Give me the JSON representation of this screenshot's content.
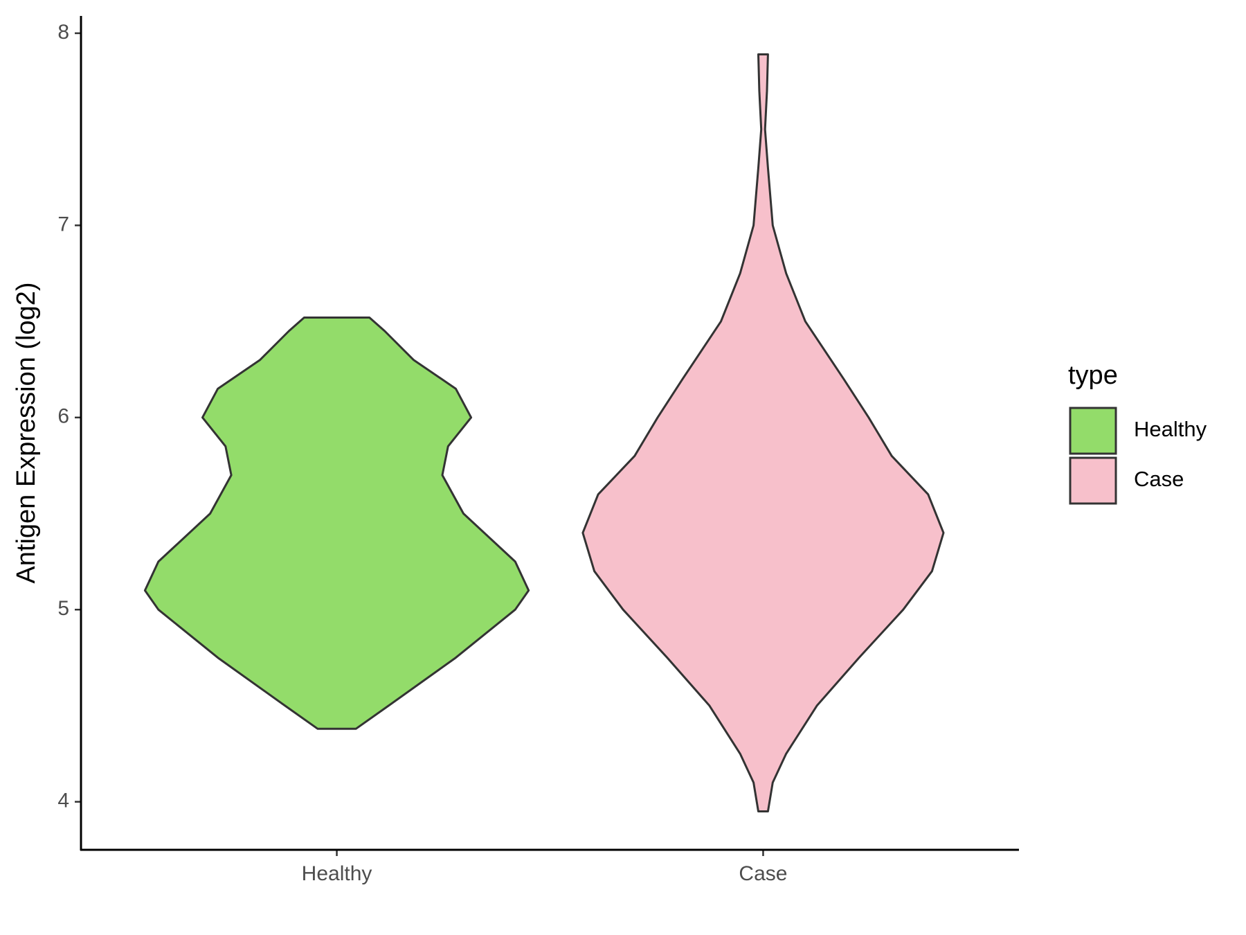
{
  "chart_data": {
    "type": "violin",
    "y_label": "Antigen Expression (log2)",
    "categories": [
      "Healthy",
      "Case"
    ],
    "legend_title": "type",
    "legend_position": "right",
    "ylim": [
      3.75,
      8.09
    ],
    "yticks": [
      4,
      5,
      6,
      7,
      8
    ],
    "series": [
      {
        "name": "Healthy",
        "color": "#93dc6a",
        "y": [
          4.38,
          4.5,
          4.75,
          5.0,
          5.1,
          5.25,
          5.5,
          5.7,
          5.85,
          6.0,
          6.15,
          6.3,
          6.45,
          6.52
        ],
        "width": [
          0.1,
          0.27,
          0.62,
          0.93,
          1.0,
          0.93,
          0.66,
          0.55,
          0.58,
          0.7,
          0.62,
          0.4,
          0.25,
          0.17
        ]
      },
      {
        "name": "Case",
        "color": "#f7c0cb",
        "y": [
          3.95,
          4.1,
          4.25,
          4.5,
          4.75,
          5.0,
          5.2,
          5.4,
          5.6,
          5.8,
          6.0,
          6.2,
          6.5,
          6.75,
          7.0,
          7.3,
          7.5,
          7.7,
          7.89
        ],
        "width": [
          0.025,
          0.05,
          0.12,
          0.28,
          0.5,
          0.73,
          0.88,
          0.94,
          0.86,
          0.67,
          0.55,
          0.42,
          0.22,
          0.12,
          0.05,
          0.025,
          0.01,
          0.02,
          0.025
        ]
      }
    ]
  }
}
